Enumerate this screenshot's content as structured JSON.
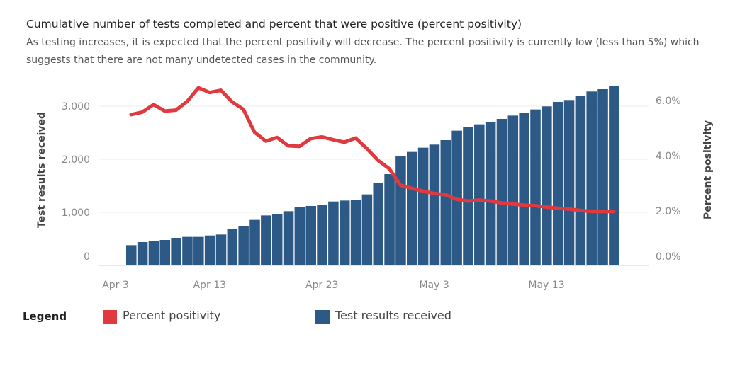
{
  "title": "Cumulative number of tests completed and percent that were positive (percent positivity)",
  "subtitle": "As testing increases, it is expected that the percent positivity will decrease. The percent positivity is currently low (less than 5%) which suggests that there are not many undetected cases in the community.",
  "legend": {
    "title": "Legend",
    "items": [
      {
        "label": "Percent positivity",
        "color": "#e0393e"
      },
      {
        "label": "Test results received",
        "color": "#2d5986"
      }
    ]
  },
  "chart_data": {
    "type": "bar+line",
    "categories": [
      "Apr 6",
      "Apr 7",
      "Apr 8",
      "Apr 9",
      "Apr 10",
      "Apr 11",
      "Apr 12",
      "Apr 13",
      "Apr 14",
      "Apr 15",
      "Apr 16",
      "Apr 17",
      "Apr 18",
      "Apr 19",
      "Apr 20",
      "Apr 21",
      "Apr 22",
      "Apr 23",
      "Apr 24",
      "Apr 25",
      "Apr 26",
      "Apr 27",
      "Apr 28",
      "Apr 29",
      "Apr 30",
      "May 1",
      "May 2",
      "May 3",
      "May 4",
      "May 5",
      "May 6",
      "May 7",
      "May 8",
      "May 9",
      "May 10",
      "May 11",
      "May 12",
      "May 13",
      "May 14",
      "May 15",
      "May 16",
      "May 17",
      "May 18",
      "May 19"
    ],
    "series": [
      {
        "name": "Test results received",
        "type": "bar",
        "axis": "left",
        "color": "#2d5986",
        "values": [
          382,
          440,
          462,
          480,
          520,
          538,
          538,
          564,
          582,
          680,
          742,
          858,
          942,
          960,
          1022,
          1102,
          1120,
          1138,
          1204,
          1222,
          1240,
          1338,
          1560,
          1720,
          2058,
          2138,
          2218,
          2276,
          2360,
          2538,
          2600,
          2658,
          2698,
          2760,
          2822,
          2880,
          2938,
          2996,
          3080,
          3116,
          3200,
          3276,
          3320,
          3378
        ]
      },
      {
        "name": "Percent positivity",
        "type": "line",
        "axis": "right",
        "color": "#e0393e",
        "values": [
          5.49,
          5.58,
          5.85,
          5.62,
          5.65,
          5.97,
          6.46,
          6.29,
          6.37,
          5.95,
          5.68,
          4.85,
          4.53,
          4.66,
          4.36,
          4.34,
          4.62,
          4.68,
          4.58,
          4.49,
          4.64,
          4.26,
          3.83,
          3.53,
          2.93,
          2.82,
          2.72,
          2.63,
          2.59,
          2.42,
          2.36,
          2.39,
          2.36,
          2.29,
          2.25,
          2.21,
          2.19,
          2.14,
          2.1,
          2.07,
          2.02,
          1.98,
          1.98,
          1.98
        ]
      }
    ],
    "x_ticks": [
      {
        "label": "Apr 3",
        "date_index": -3
      },
      {
        "label": "Apr 13",
        "date_index": 7
      },
      {
        "label": "Apr 23",
        "date_index": 17
      },
      {
        "label": "May 3",
        "date_index": 27
      },
      {
        "label": "May 13",
        "date_index": 37
      }
    ],
    "y_left": {
      "label": "Test results received",
      "ticks": [
        {
          "v": 0,
          "label": "0"
        },
        {
          "v": 1000,
          "label": "1,000"
        },
        {
          "v": 2000,
          "label": "2,000"
        },
        {
          "v": 3000,
          "label": "3,000"
        }
      ]
    },
    "y_right": {
      "label": "Percent positivity",
      "ticks": [
        {
          "v": 0,
          "label": "0.0%"
        },
        {
          "v": 2,
          "label": "2.0%"
        },
        {
          "v": 4,
          "label": "4.0%"
        },
        {
          "v": 6,
          "label": "6.0%"
        }
      ]
    },
    "grid": true
  }
}
